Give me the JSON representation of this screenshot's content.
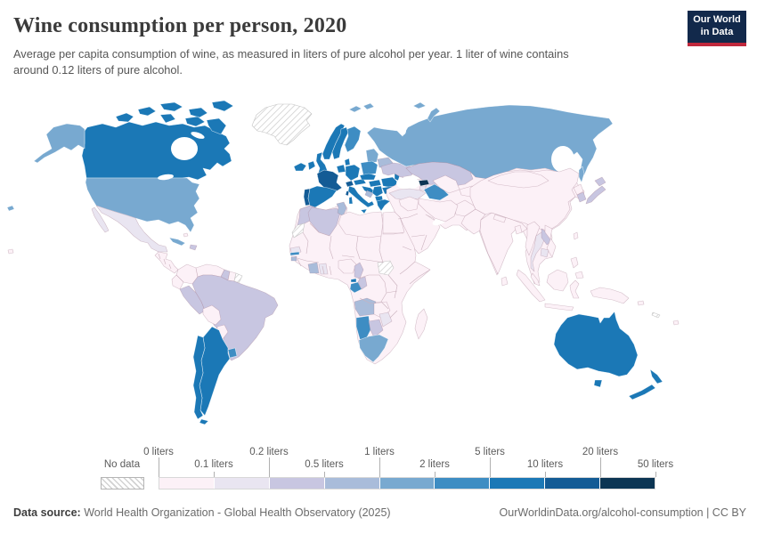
{
  "header": {
    "title": "Wine consumption per person, 2020",
    "subtitle_line1": "Average per capita consumption of wine, as measured in liters of pure alcohol per year. 1 liter of wine contains",
    "subtitle_line2": "around 0.12 liters of pure alcohol.",
    "logo": {
      "line1": "Our World",
      "line2": "in Data",
      "bg": "#12294b",
      "accent": "#c0283c"
    }
  },
  "chart_data": {
    "type": "choropleth_map",
    "title": "Wine consumption per person, 2020",
    "unit": "liters of pure alcohol per person per year",
    "legend": {
      "no_data_label": "No data",
      "boundary_labels": [
        "0 liters",
        "0.1 liters",
        "0.2 liters",
        "0.5 liters",
        "1 liters",
        "2 liters",
        "5 liters",
        "10 liters",
        "20 liters",
        "50 liters"
      ],
      "bin_colors": [
        "#fcf1f7",
        "#e9e5f1",
        "#c8c6e1",
        "#a9bcda",
        "#78a9d0",
        "#3e8dc3",
        "#1b78b6",
        "#135b95",
        "#0c3553"
      ],
      "no_data_pattern": "diagonal-hatch"
    },
    "regions": {
      "greenland": "nodata",
      "canada": 6,
      "alaska": 4,
      "usa": 4,
      "hawaii": 4,
      "mexico": 1,
      "central-america": 0,
      "cuba": 4,
      "hispaniola": 2,
      "bahamas": 0,
      "colombia": 0,
      "venezuela": 0,
      "guyana": 2,
      "suriname": 0,
      "french-guiana": "nodata",
      "ecuador": 0,
      "peru": 2,
      "brazil": 2,
      "bolivia": 0,
      "paraguay": 0,
      "uruguay": 5,
      "argentina": 6,
      "chile": 6,
      "iceland": 6,
      "ireland": 6,
      "united-kingdom": 6,
      "norway": 6,
      "sweden": 6,
      "finland": 5,
      "denmark": 6,
      "baltic-states": 4,
      "belarus": 3,
      "poland": 5,
      "germany": 6,
      "benelux": 6,
      "france": 7,
      "switzerland": 7,
      "austria": 6,
      "czechia-slovakia": 6,
      "hungary": 6,
      "portugal": 7,
      "spain": 6,
      "italy": 6,
      "slovenia-croatia": 6,
      "bosnia": 3,
      "serbia": 6,
      "albania-north-macedonia": 6,
      "greece": 6,
      "romania": 6,
      "bulgaria": 6,
      "moldova": 6,
      "ukraine": 2,
      "crimea": 2,
      "russia": 4,
      "svalbard": 4,
      "arctic-islands-ru": 4,
      "novaya-zemlya": 4,
      "sakhalin": 4,
      "turkey": 1,
      "cyprus": 5,
      "georgia": 8,
      "armenia": 1,
      "azerbaijan": 1,
      "kazakhstan": 2,
      "uzbekistan": 0,
      "kyrgyzstan-tajikistan": 0,
      "turkmenistan": 5,
      "afghanistan": 0,
      "pakistan": 0,
      "iran": 0,
      "iraq-syria": 0,
      "arabia": 0,
      "asia-base": 0,
      "africa-base": 0,
      "madagascar": 0,
      "morocco": 2,
      "western-sahara": "nodata",
      "algeria": 2,
      "tunisia": 3,
      "libya": 0,
      "egypt": 0,
      "senegal": 1,
      "gambia": 5,
      "guinea-bissau": 3,
      "ivory-coast": 3,
      "ghana": 1,
      "nigeria": 0,
      "cameroon": 2,
      "equatorial-guinea": 6,
      "gabon": 5,
      "congo": 2,
      "south-sudan": "nodata",
      "angola": 3,
      "zambia": 0,
      "namibia": 5,
      "botswana": 2,
      "zimbabwe": 1,
      "south-africa": 4,
      "india": 0,
      "sri-lanka": 0,
      "nepal": 0,
      "bangladesh": 0,
      "china": 0,
      "mongolia": 0,
      "north-korea": 0,
      "south-korea": 2,
      "japan": 2,
      "taiwan": 0,
      "myanmar": 0,
      "thailand": 1,
      "laos": 2,
      "vietnam": 0,
      "cambodia": 1,
      "malaysia": 0,
      "indonesia": 0,
      "papua-new-guinea": 0,
      "philippines": 0,
      "australia": 6,
      "tasmania": 6,
      "new-zealand": 6,
      "fiji": 0,
      "new-caledonia": "nodata",
      "solomon-islands": 0,
      "pacific-island": 0
    }
  },
  "footer": {
    "source_label": "Data source:",
    "source_text": " World Health Organization - Global Health Observatory (2025)",
    "attribution": "OurWorldinData.org/alcohol-consumption | CC BY"
  }
}
